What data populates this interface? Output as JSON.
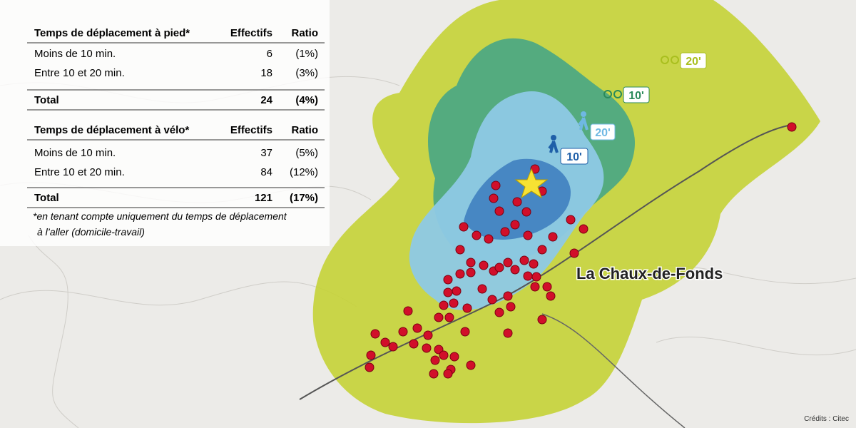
{
  "walk_table": {
    "header": [
      "Temps de déplacement à pied*",
      "Effectifs",
      "Ratio"
    ],
    "rows": [
      [
        "Moins de 10 min.",
        "6",
        "(1%)"
      ],
      [
        "Entre 10 et 20 min.",
        "18",
        "(3%)"
      ]
    ],
    "total": [
      "Total",
      "24",
      "(4%)"
    ]
  },
  "bike_table": {
    "header": [
      "Temps de déplacement à vélo*",
      "Effectifs",
      "Ratio"
    ],
    "rows": [
      [
        "Moins de 10 min.",
        "37",
        "(5%)"
      ],
      [
        "Entre 10 et 20 min.",
        "84",
        "(12%)"
      ]
    ],
    "total": [
      "Total",
      "121",
      "(17%)"
    ]
  },
  "footnote": [
    "*en tenant compte uniquement du temps de déplacement",
    "à l’aller (domicile-travail)"
  ],
  "legend": {
    "walk_10": "10'",
    "walk_20": "20'",
    "bike_10": "10'",
    "bike_20": "20'"
  },
  "city_label": "La Chaux-de-Fonds",
  "credits": "Crédits : Citec"
}
